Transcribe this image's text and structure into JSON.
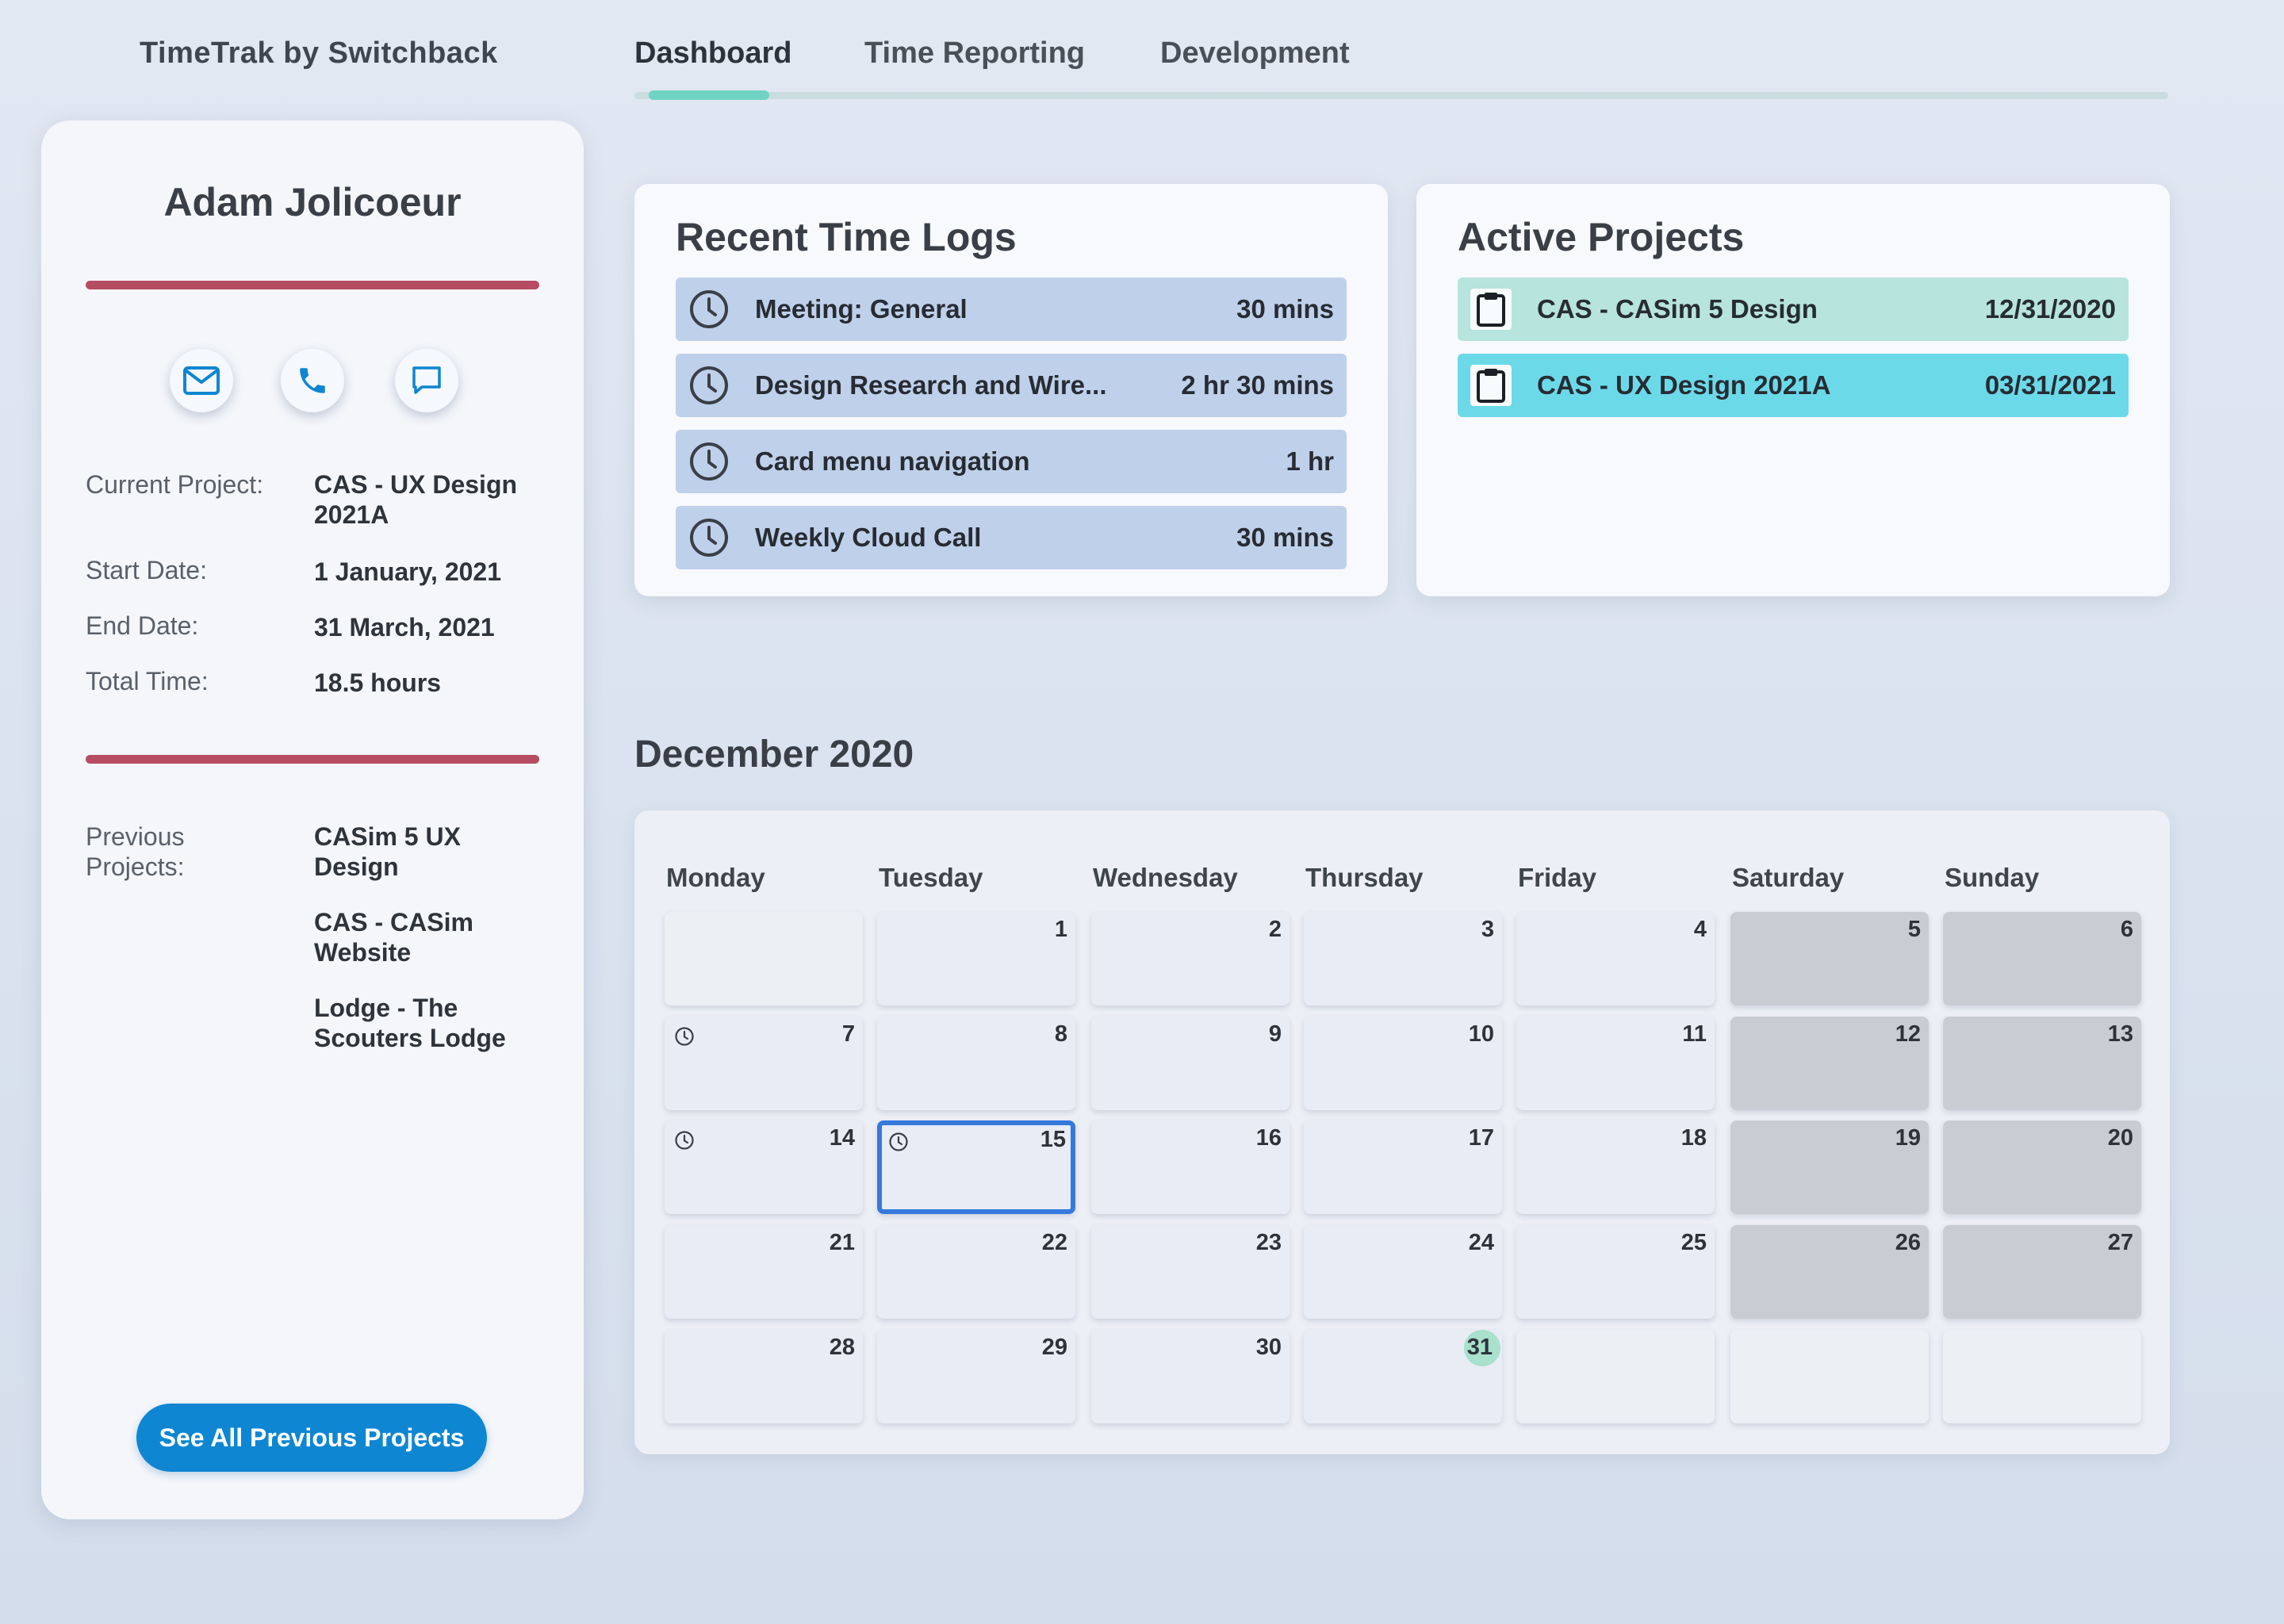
{
  "app": {
    "title": "TimeTrak by Switchback"
  },
  "nav": {
    "tabs": [
      {
        "label": "Dashboard",
        "active": true
      },
      {
        "label": "Time Reporting",
        "active": false
      },
      {
        "label": "Development",
        "active": false
      }
    ]
  },
  "profile": {
    "name": "Adam Jolicoeur",
    "contact_icons": [
      "mail-icon",
      "phone-icon",
      "chat-icon"
    ],
    "current_project_label": "Current Project:",
    "current_project_value": "CAS - UX Design 2021A",
    "start_date_label": "Start Date:",
    "start_date_value": "1 January, 2021",
    "end_date_label": "End Date:",
    "end_date_value": "31 March, 2021",
    "total_time_label": "Total Time:",
    "total_time_value": "18.5 hours",
    "previous_projects_label": "Previous Projects:",
    "previous_projects": [
      "CASim 5 UX Design",
      "CAS - CASim Website",
      "Lodge - The Scouters Lodge"
    ],
    "see_all_button": "See All Previous Projects",
    "divider_color": "#b54c62"
  },
  "recent_time_logs": {
    "title": "Recent Time Logs",
    "items": [
      {
        "label": "Meeting: General",
        "duration": "30 mins"
      },
      {
        "label": "Design Research and Wire...",
        "duration": "2 hr 30 mins"
      },
      {
        "label": "Card menu navigation",
        "duration": "1 hr"
      },
      {
        "label": "Weekly Cloud Call",
        "duration": "30 mins"
      }
    ]
  },
  "active_projects": {
    "title": "Active Projects",
    "items": [
      {
        "label": "CAS - CASim 5 Design",
        "date": "12/31/2020",
        "color": "#b7e4dc"
      },
      {
        "label": "CAS - UX Design 2021A",
        "date": "03/31/2021",
        "color": "#6cd9e9"
      }
    ]
  },
  "calendar": {
    "month_title": "December 2020",
    "weekdays": [
      "Monday",
      "Tuesday",
      "Wednesday",
      "Thursday",
      "Friday",
      "Saturday",
      "Sunday"
    ],
    "days": [
      "",
      "1",
      "2",
      "3",
      "4",
      "5",
      "6",
      "7",
      "8",
      "9",
      "10",
      "11",
      "12",
      "13",
      "14",
      "15",
      "16",
      "17",
      "18",
      "19",
      "20",
      "21",
      "22",
      "23",
      "24",
      "25",
      "26",
      "27",
      "28",
      "29",
      "30",
      "31",
      "",
      "",
      ""
    ],
    "selected_day": "15",
    "today": "31",
    "days_with_logs": [
      "7",
      "14",
      "15"
    ],
    "selected_color": "#3579dd",
    "today_color": "#a8e1cc"
  }
}
